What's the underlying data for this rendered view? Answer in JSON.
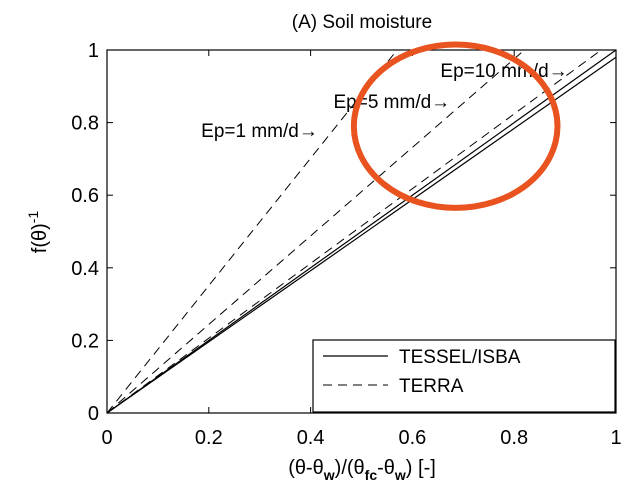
{
  "chart_data": {
    "type": "line",
    "title": "(A) Soil moisture",
    "xlabel": "(θ-θw)/(θfc-θw) [-]",
    "xlabel_parts": [
      {
        "text": "(θ-θ",
        "sub": false
      },
      {
        "text": "w",
        "sub": true
      },
      {
        "text": ")/(θ",
        "sub": false
      },
      {
        "text": "fc",
        "sub": true
      },
      {
        "text": "-θ",
        "sub": false
      },
      {
        "text": "w",
        "sub": true
      },
      {
        "text": ") [-]",
        "sub": false
      }
    ],
    "ylabel": "f(θ)-1",
    "ylabel_base": "f(θ)",
    "ylabel_sup": "-1",
    "xlim": [
      0,
      1
    ],
    "ylim": [
      0,
      1
    ],
    "xticks": [
      0,
      0.2,
      0.4,
      0.6,
      0.8,
      1
    ],
    "yticks": [
      0,
      0.2,
      0.4,
      0.6,
      0.8,
      1
    ],
    "xtick_labels": [
      "0",
      "0.2",
      "0.4",
      "0.6",
      "0.8",
      "1"
    ],
    "ytick_labels": [
      "0",
      "0.2",
      "0.4",
      "0.6",
      "0.8",
      "1"
    ],
    "grid": false,
    "legend_position": "bottom-right",
    "legend": [
      {
        "label": "TESSEL/ISBA",
        "style": "solid"
      },
      {
        "label": "TERRA",
        "style": "dashed"
      }
    ],
    "series": [
      {
        "group": "TESSEL/ISBA",
        "style": "solid",
        "x": [
          0,
          1
        ],
        "y": [
          0,
          1
        ]
      },
      {
        "group": "TESSEL/ISBA",
        "style": "solid",
        "x": [
          0,
          1
        ],
        "y": [
          0,
          0.98
        ]
      },
      {
        "group": "TERRA",
        "style": "dashed",
        "x": [
          0,
          0.57
        ],
        "y": [
          0,
          1
        ]
      },
      {
        "group": "TERRA",
        "style": "dashed",
        "x": [
          0,
          0.82
        ],
        "y": [
          0,
          1
        ]
      },
      {
        "group": "TERRA",
        "style": "dashed",
        "x": [
          0,
          1
        ],
        "y": [
          0,
          1.03
        ]
      }
    ],
    "annotations": [
      {
        "text": "Ep=10 mm/d→",
        "x": 0.655,
        "y": 0.945
      },
      {
        "text": "Ep=5 mm/d→",
        "x": 0.445,
        "y": 0.86
      },
      {
        "text": "Ep=1 mm/d→",
        "x": 0.185,
        "y": 0.78
      }
    ],
    "highlight": {
      "shape": "ellipse",
      "color": "#e8531f",
      "cx": 0.685,
      "cy": 0.79,
      "rx": 0.2,
      "ry": 0.225
    }
  }
}
